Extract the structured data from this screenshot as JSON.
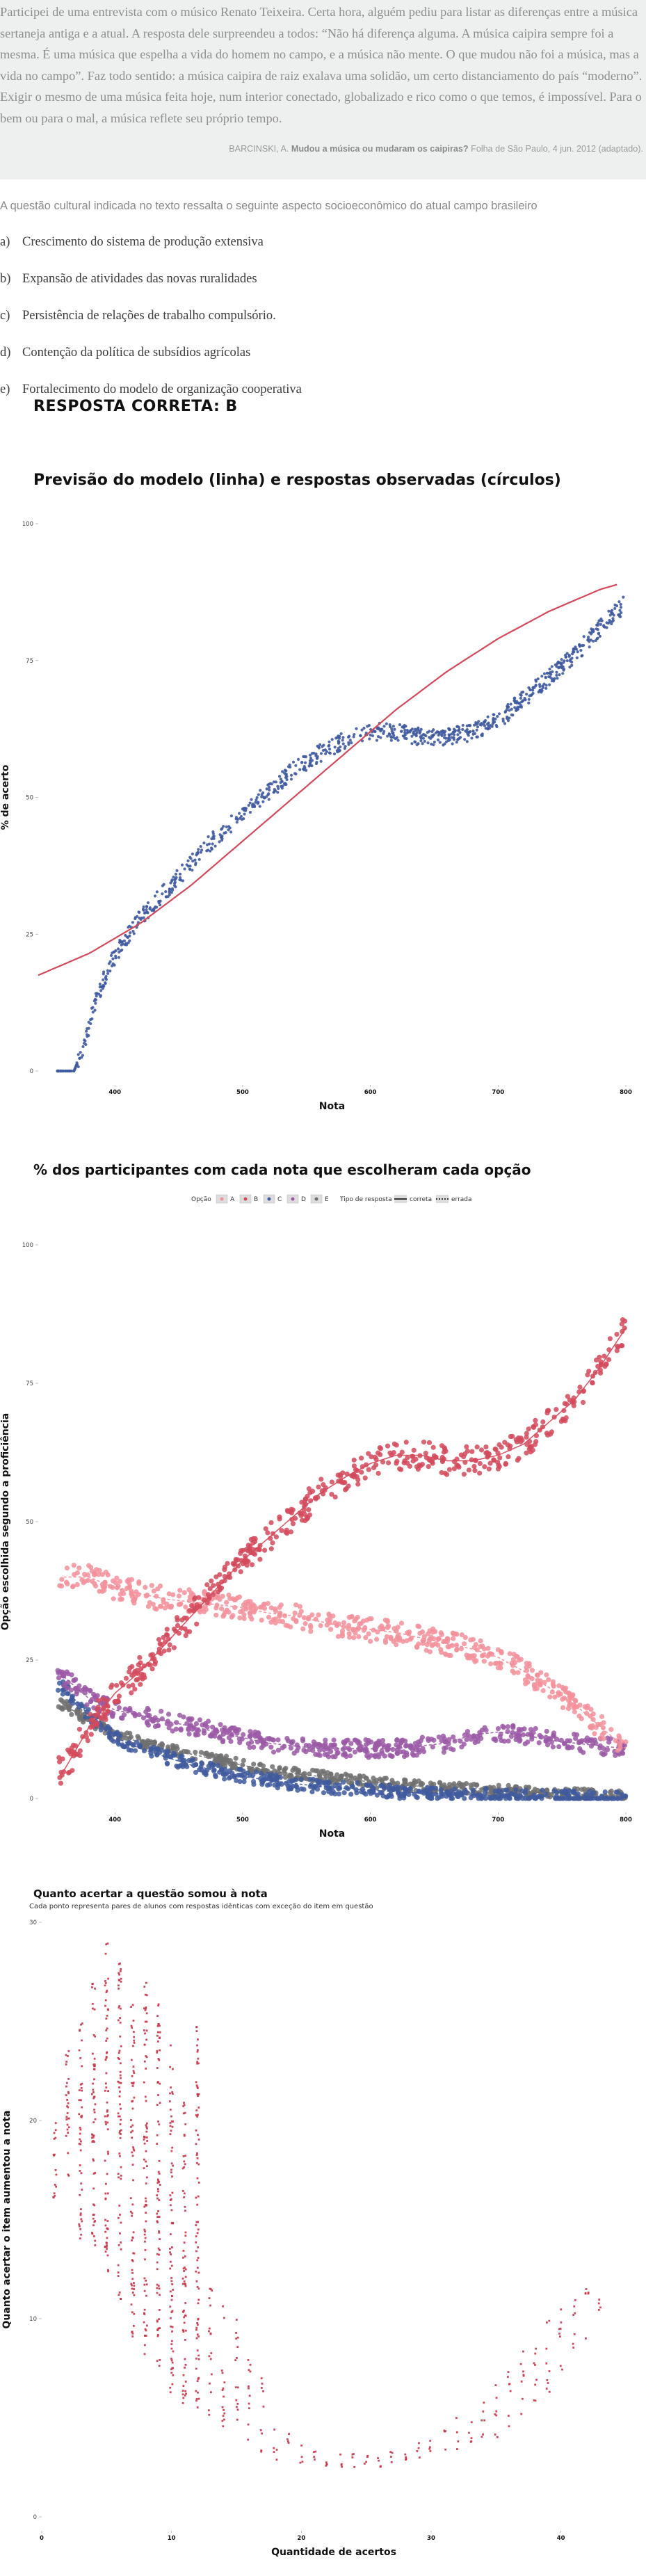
{
  "quote": {
    "text": "Participei de uma entrevista com o músico Renato Teixeira. Certa hora, alguém pediu para listar as diferenças entre a música sertaneja antiga e a atual. A resposta dele surpreendeu a todos: “Não há diferença alguma. A música caipira sempre foi a mesma. É uma música que espelha a vida do homem no campo, e a música não mente. O que mudou não foi a música, mas a vida no campo”. Faz todo sentido: a música caipira de raiz exalava uma solidão, um certo distanciamento do país “moderno”. Exigir o mesmo de uma música feita hoje, num interior conectado, globalizado e rico como o que temos, é impossível. Para o bem ou para o mal, a música reflete seu próprio tempo.",
    "source_author": "BARCINSKI, A.",
    "source_title": "Mudou a música ou mudaram os caipiras?",
    "source_rest": "Folha de São Paulo, 4 jun. 2012 (adaptado)."
  },
  "question": "A questão cultural indicada no texto ressalta o seguinte aspecto socioeconômico do atual campo brasileiro",
  "options": [
    {
      "letter": "a)",
      "text": "Crescimento do sistema de produção extensiva"
    },
    {
      "letter": "b)",
      "text": "Expansão de atividades das novas ruralidades"
    },
    {
      "letter": "c)",
      "text": "Persistência de relações de trabalho compulsório."
    },
    {
      "letter": "d)",
      "text": "Contenção da política de subsídios agrícolas"
    },
    {
      "letter": "e)",
      "text": "Fortalecimento do modelo de organização cooperativa"
    }
  ],
  "answer": "RESPOSTA CORRETA: B",
  "colors": {
    "model_line": "#d1495b",
    "observed": "#3f5a9e",
    "A": "#f2909b",
    "B": "#d24a5c",
    "C": "#3f5a9e",
    "D": "#9b59a6",
    "E": "#707070",
    "gain": "#c8364a"
  },
  "chart_data": [
    {
      "type": "scatter",
      "title": "Previsão do modelo (linha) e respostas observadas (círculos)",
      "xlabel": "Nota",
      "ylabel": "% de acerto",
      "xlim": [
        340,
        800
      ],
      "ylim": [
        0,
        100
      ],
      "x_ticks": [
        "400",
        "500",
        "600",
        "700",
        "800"
      ],
      "y_ticks": [
        "0",
        "25",
        "50",
        "75",
        "100"
      ],
      "series": [
        {
          "kind": "line",
          "x": [
            340,
            380,
            420,
            460,
            500,
            540,
            580,
            620,
            660,
            700,
            740,
            780,
            795
          ],
          "values": [
            17.5,
            21.5,
            27,
            34,
            42,
            50,
            58,
            66,
            73,
            79,
            84,
            88,
            89
          ]
        },
        {
          "kind": "points",
          "x": [
            355,
            368,
            375,
            385,
            395,
            405,
            420,
            440,
            460,
            480,
            500,
            520,
            540,
            560,
            580,
            600,
            620,
            640,
            660,
            680,
            700,
            720,
            740,
            760,
            780,
            798
          ],
          "values": [
            0,
            0,
            4,
            13,
            19,
            23,
            28,
            33,
            38,
            43,
            47,
            51,
            55,
            58,
            60.5,
            62,
            62,
            61,
            61,
            62,
            64,
            68,
            72,
            76,
            81,
            85
          ]
        }
      ]
    },
    {
      "type": "scatter",
      "title": "% dos participantes com cada nota que escolheram cada opção",
      "xlabel": "Nota",
      "ylabel": "Opção escolhida segundo a proficiência",
      "xlim": [
        340,
        800
      ],
      "ylim": [
        0,
        100
      ],
      "x_ticks": [
        "400",
        "500",
        "600",
        "700",
        "800"
      ],
      "y_ticks": [
        "0",
        "25",
        "50",
        "75",
        "100"
      ],
      "legend": {
        "placement": "top",
        "option_title": "Opção",
        "type_title": "Tipo de resposta",
        "type_labels": [
          "correta",
          "errada"
        ]
      },
      "categories": [
        "A",
        "B",
        "C",
        "D",
        "E"
      ],
      "x": [
        360,
        380,
        400,
        420,
        440,
        460,
        480,
        500,
        520,
        540,
        560,
        580,
        600,
        620,
        640,
        660,
        680,
        700,
        720,
        740,
        760,
        780,
        800
      ],
      "series": [
        {
          "name": "A",
          "values": [
            40,
            40,
            38,
            37,
            36,
            35.5,
            35,
            34.5,
            33.5,
            33,
            32,
            31,
            30.5,
            30,
            29,
            28,
            27,
            25.5,
            23,
            20,
            17,
            13,
            9
          ]
        },
        {
          "name": "B",
          "values": [
            5,
            13,
            19,
            23,
            28,
            33,
            38,
            43,
            47,
            51,
            55,
            58,
            60.5,
            62,
            62,
            61,
            61,
            62,
            64,
            68,
            72,
            78,
            85
          ]
        },
        {
          "name": "C",
          "values": [
            20,
            15,
            11,
            9,
            7.5,
            6,
            5,
            4,
            3.3,
            2.7,
            2.2,
            1.8,
            1.5,
            1.2,
            1,
            0.8,
            0.6,
            0.5,
            0.4,
            0.3,
            0.2,
            0.1,
            0.1
          ]
        },
        {
          "name": "D",
          "values": [
            22,
            18,
            16,
            15,
            14,
            13,
            12,
            11,
            10,
            9.5,
            9,
            9,
            9,
            9,
            9.5,
            10,
            11.5,
            12,
            11.5,
            10.5,
            10,
            9.5,
            9
          ]
        },
        {
          "name": "E",
          "values": [
            17,
            14,
            12,
            10,
            9,
            8,
            7,
            6,
            5,
            4.5,
            4,
            3.5,
            3,
            2.5,
            2.2,
            2,
            1.8,
            1.5,
            1.2,
            1,
            0.8,
            0.6,
            0.5
          ]
        }
      ]
    },
    {
      "type": "scatter",
      "title": "Quanto acertar a questão somou à nota",
      "subtitle": "Cada ponto representa pares de alunos com respostas idênticas com exceção do item em questão",
      "xlabel": "Quantidade de acertos",
      "ylabel": "Quanto acertar o item aumentou a nota",
      "xlim": [
        0,
        45
      ],
      "ylim": [
        0,
        30
      ],
      "x_ticks": [
        "0",
        "10",
        "20",
        "30",
        "40"
      ],
      "y_ticks": [
        "0",
        "10",
        "20",
        "30"
      ],
      "columns": [
        {
          "x": 1,
          "min": 16,
          "max": 20
        },
        {
          "x": 2,
          "min": 17,
          "max": 24
        },
        {
          "x": 3,
          "min": 14,
          "max": 25
        },
        {
          "x": 4,
          "min": 13,
          "max": 27
        },
        {
          "x": 5,
          "min": 12,
          "max": 29
        },
        {
          "x": 6,
          "min": 11,
          "max": 28
        },
        {
          "x": 7,
          "min": 9,
          "max": 26
        },
        {
          "x": 8,
          "min": 8,
          "max": 27
        },
        {
          "x": 9,
          "min": 7,
          "max": 26
        },
        {
          "x": 10,
          "min": 6,
          "max": 24
        },
        {
          "x": 11,
          "min": 5.5,
          "max": 21
        },
        {
          "x": 12,
          "min": 5,
          "max": 25
        },
        {
          "x": 13,
          "min": 4.5,
          "max": 12
        },
        {
          "x": 14,
          "min": 4,
          "max": 11
        },
        {
          "x": 15,
          "min": 3.5,
          "max": 10
        },
        {
          "x": 16,
          "min": 3.2,
          "max": 8
        },
        {
          "x": 17,
          "min": 3,
          "max": 7
        },
        {
          "x": 18,
          "min": 2.8,
          "max": 5
        },
        {
          "x": 19,
          "min": 2.6,
          "max": 4.5
        },
        {
          "x": 20,
          "min": 2.5,
          "max": 4
        },
        {
          "x": 21,
          "min": 2.5,
          "max": 3.5
        },
        {
          "x": 22,
          "min": 2.5,
          "max": 3.2
        },
        {
          "x": 23,
          "min": 2.5,
          "max": 3.2
        },
        {
          "x": 24,
          "min": 2.5,
          "max": 3.2
        },
        {
          "x": 25,
          "min": 2.5,
          "max": 3.2
        },
        {
          "x": 26,
          "min": 2.5,
          "max": 3.2
        },
        {
          "x": 27,
          "min": 2.6,
          "max": 3.3
        },
        {
          "x": 28,
          "min": 2.7,
          "max": 3.5
        },
        {
          "x": 29,
          "min": 2.8,
          "max": 3.8
        },
        {
          "x": 30,
          "min": 3,
          "max": 4
        },
        {
          "x": 31,
          "min": 3,
          "max": 4.5
        },
        {
          "x": 32,
          "min": 3.2,
          "max": 5
        },
        {
          "x": 33,
          "min": 3.3,
          "max": 5.5
        },
        {
          "x": 34,
          "min": 3.5,
          "max": 6
        },
        {
          "x": 35,
          "min": 4,
          "max": 7
        },
        {
          "x": 36,
          "min": 4.5,
          "max": 7.5
        },
        {
          "x": 37,
          "min": 5,
          "max": 8.5
        },
        {
          "x": 38,
          "min": 5.5,
          "max": 9
        },
        {
          "x": 39,
          "min": 6,
          "max": 10
        },
        {
          "x": 40,
          "min": 7,
          "max": 10.5
        },
        {
          "x": 41,
          "min": 8,
          "max": 11
        },
        {
          "x": 42,
          "min": 9,
          "max": 11.5
        },
        {
          "x": 43,
          "min": 10,
          "max": 11.5
        }
      ]
    }
  ]
}
